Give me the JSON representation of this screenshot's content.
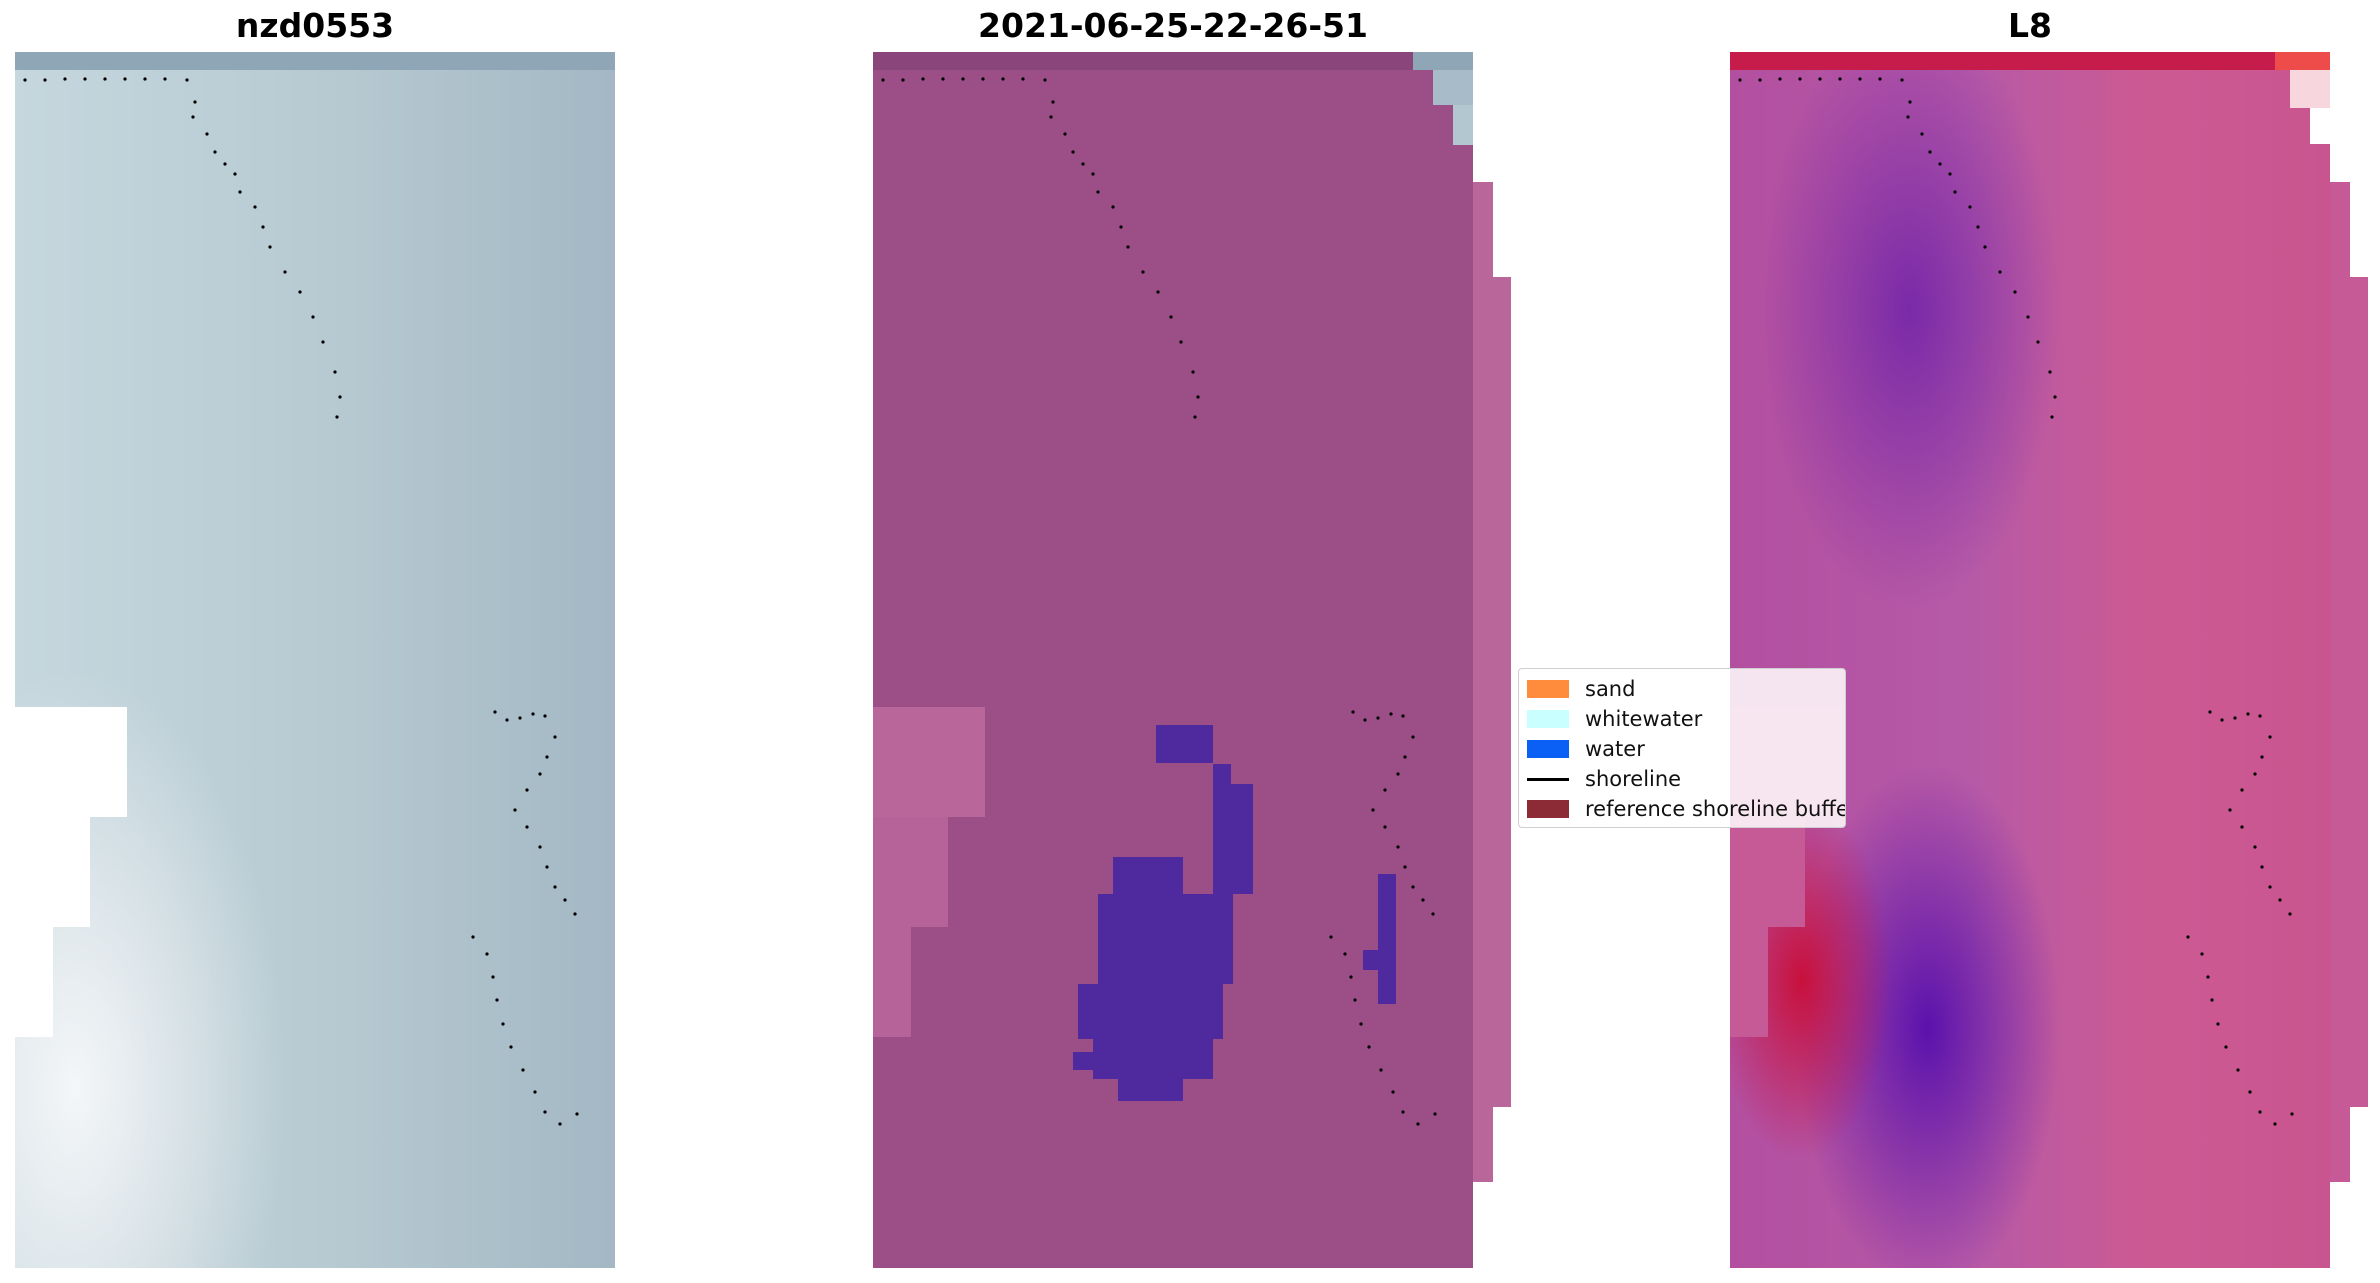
{
  "panels": [
    {
      "title": "nzd0553"
    },
    {
      "title": "2021-06-25-22-26-51"
    },
    {
      "title": "L8"
    }
  ],
  "legend": {
    "items": [
      {
        "label": "sand",
        "color": "#ff8c3c",
        "kind": "patch"
      },
      {
        "label": "whitewater",
        "color": "#c9ffff",
        "kind": "patch"
      },
      {
        "label": "water",
        "color": "#0a5ff5",
        "kind": "patch"
      },
      {
        "label": "shoreline",
        "color": "#000000",
        "kind": "line"
      },
      {
        "label": "reference shoreline buffer",
        "color": "#8c2a35",
        "kind": "patch"
      }
    ]
  },
  "colors": {
    "rgb_base": "#b8c9d2",
    "classified_base": "#9c4f86",
    "water_class": "#4f2a9e",
    "index_base": "#c9589a",
    "index_high": "#c8103c",
    "index_low": "#6a1ea8"
  }
}
